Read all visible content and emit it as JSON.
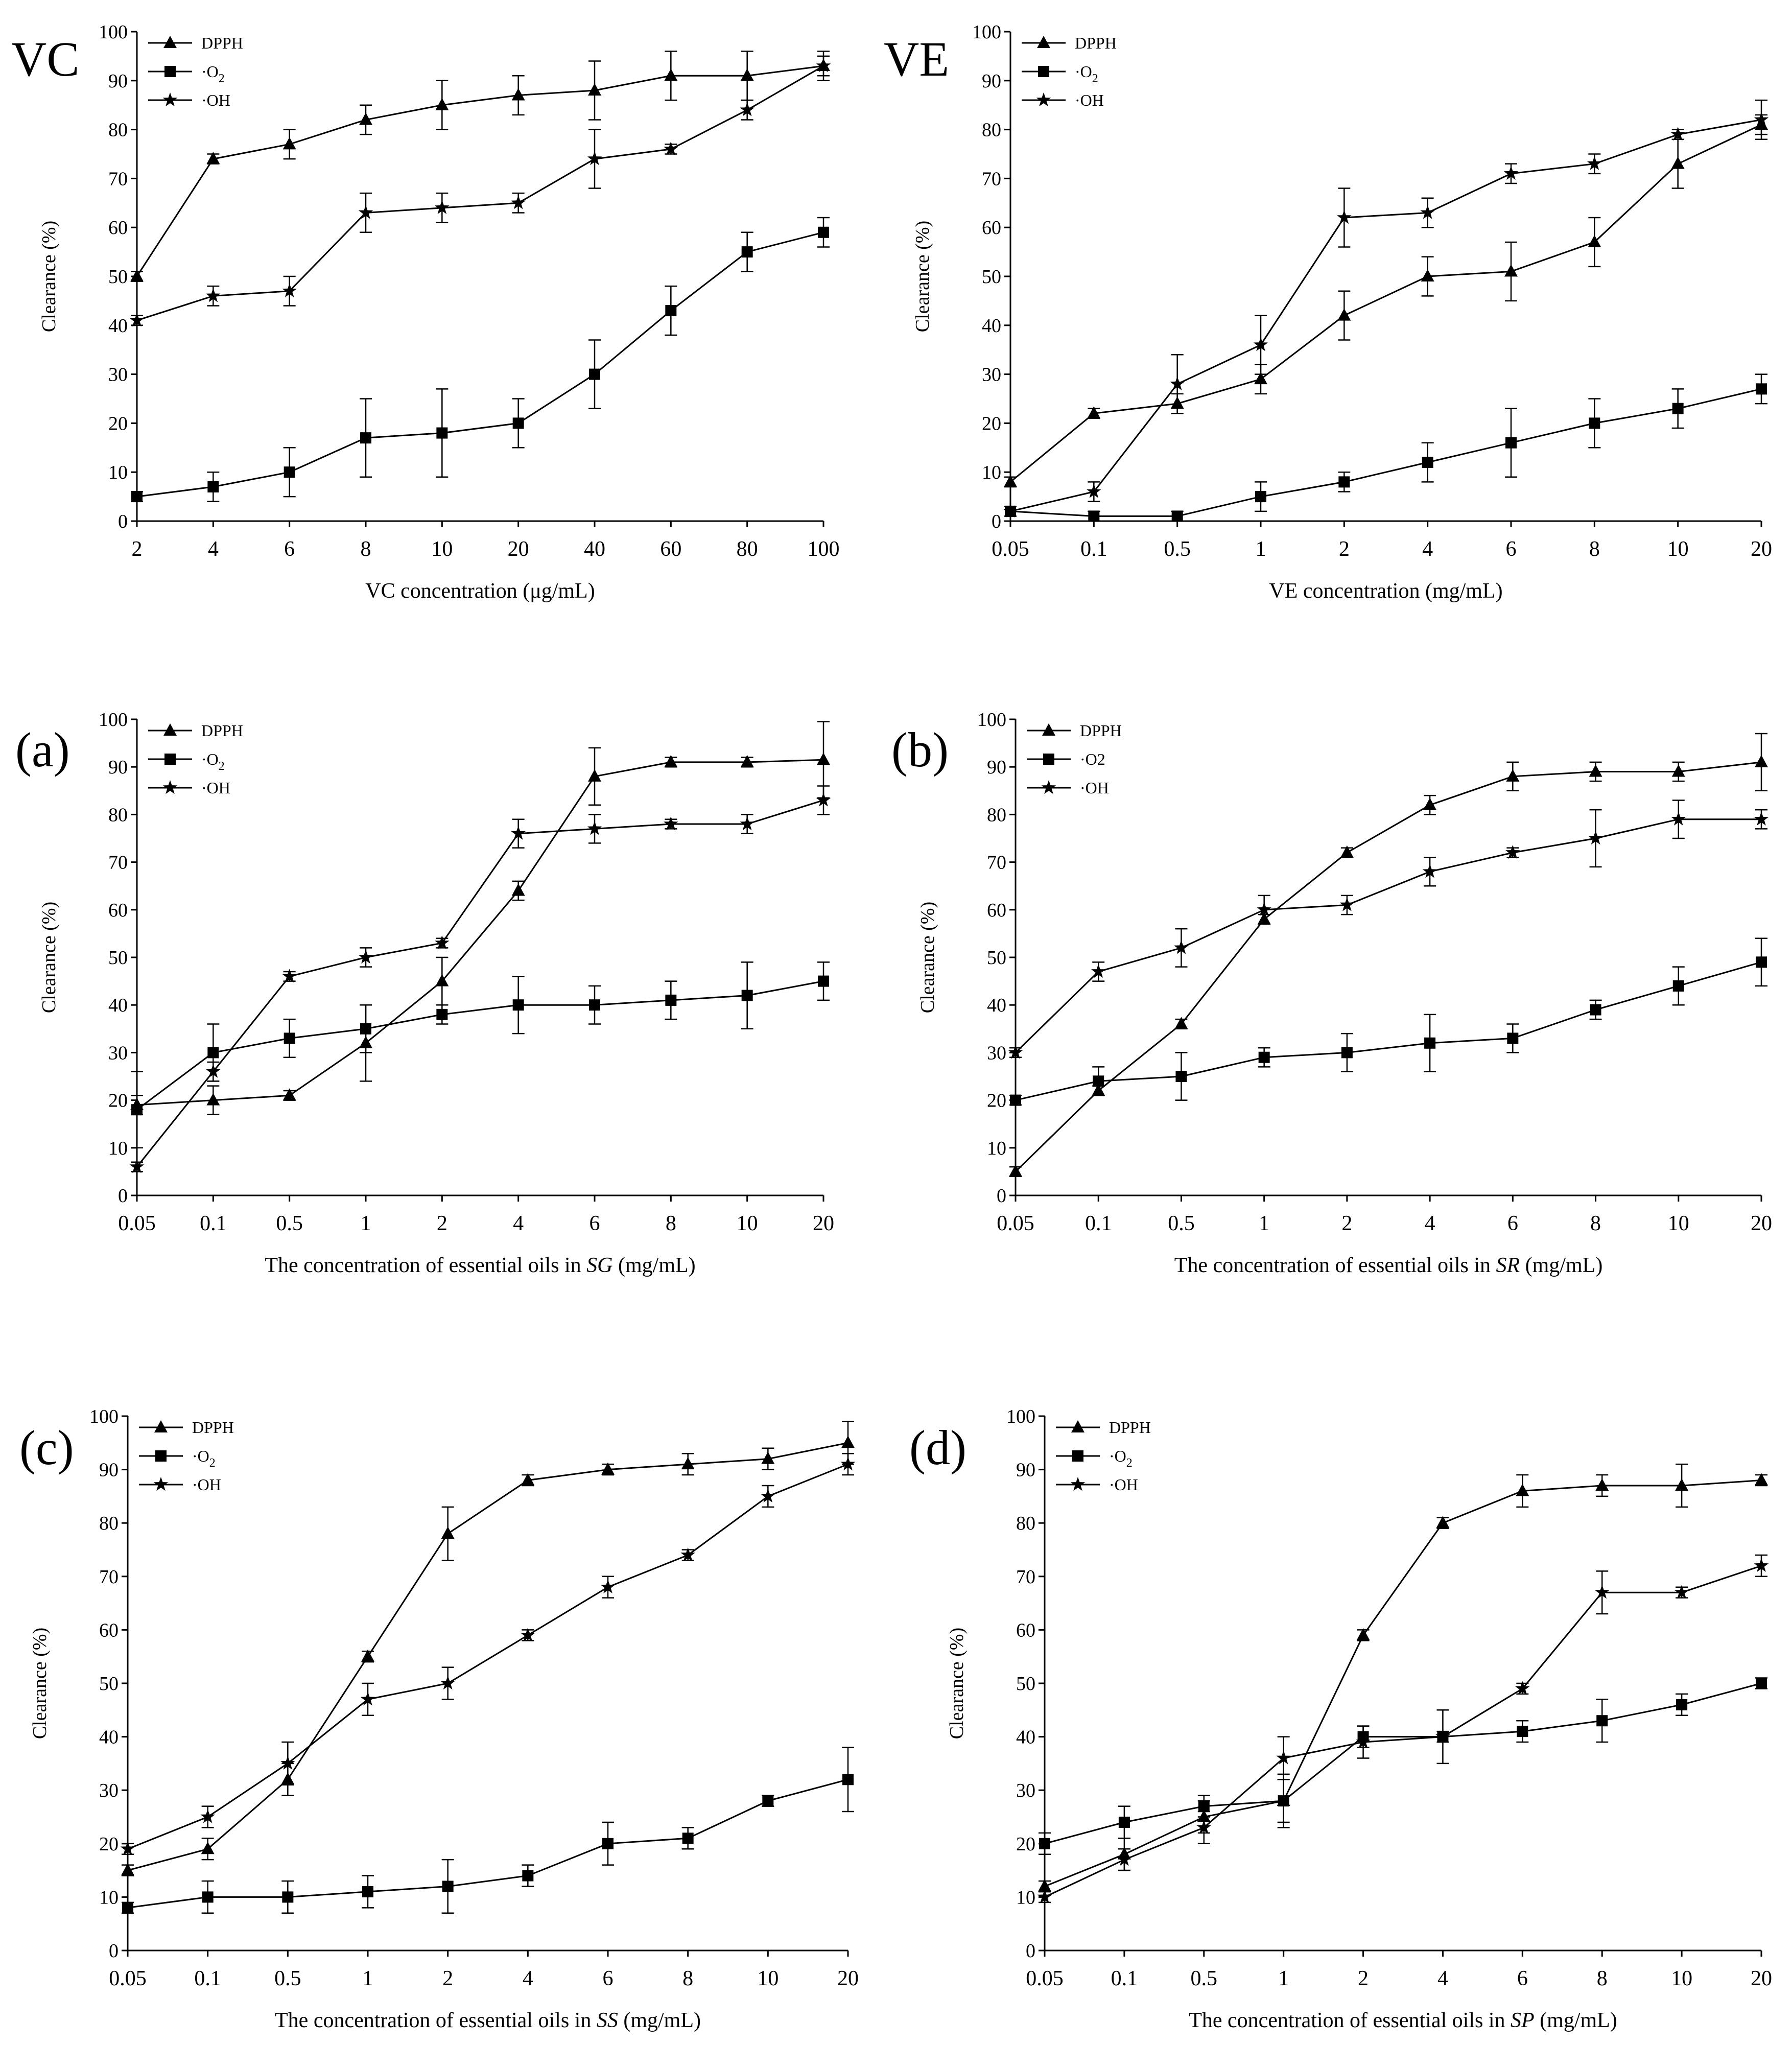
{
  "chart_data": [
    {
      "panel_label": "VC",
      "type": "line",
      "categories": [
        "2",
        "4",
        "6",
        "8",
        "10",
        "20",
        "40",
        "60",
        "80",
        "100"
      ],
      "xlabel": "VC concentration (μg/mL)",
      "xlabel_prefix": "VC concentration (μg/mL)",
      "xlabel_italic": "",
      "xlabel_suffix": "",
      "ylabel": "Clearance (%)",
      "ylim": [
        0,
        100
      ],
      "yticks": [
        0,
        10,
        20,
        30,
        40,
        50,
        60,
        70,
        80,
        90,
        100
      ],
      "legend": {
        "position": "top-left",
        "entries": [
          {
            "marker": "triangle",
            "text": "DPPH",
            "sub": ""
          },
          {
            "marker": "square",
            "text": "·O",
            "sub": "2"
          },
          {
            "marker": "star",
            "text": "·OH",
            "sub": ""
          }
        ]
      },
      "series": [
        {
          "name": "DPPH",
          "marker": "triangle",
          "values": [
            50,
            74,
            77,
            82,
            85,
            87,
            88,
            91,
            91,
            93
          ],
          "errors": [
            1,
            1,
            3,
            3,
            5,
            4,
            6,
            5,
            5,
            2
          ]
        },
        {
          "name": "·O2",
          "marker": "square",
          "values": [
            5,
            7,
            10,
            17,
            18,
            20,
            30,
            43,
            55,
            59
          ],
          "errors": [
            1,
            3,
            5,
            8,
            9,
            5,
            7,
            5,
            4,
            3
          ]
        },
        {
          "name": "·OH",
          "marker": "star",
          "values": [
            41,
            46,
            47,
            63,
            64,
            65,
            74,
            76,
            84,
            93
          ],
          "errors": [
            1,
            2,
            3,
            4,
            3,
            2,
            6,
            1,
            2,
            3
          ]
        }
      ]
    },
    {
      "panel_label": "VE",
      "type": "line",
      "categories": [
        "0.05",
        "0.1",
        "0.5",
        "1",
        "2",
        "4",
        "6",
        "8",
        "10",
        "20"
      ],
      "xlabel": "VE concentration (mg/mL)",
      "xlabel_prefix": "VE concentration (mg/mL)",
      "xlabel_italic": "",
      "xlabel_suffix": "",
      "ylabel": "Clearance (%)",
      "ylim": [
        0,
        100
      ],
      "yticks": [
        0,
        10,
        20,
        30,
        40,
        50,
        60,
        70,
        80,
        90,
        100
      ],
      "legend": {
        "position": "top-left",
        "entries": [
          {
            "marker": "triangle",
            "text": "DPPH",
            "sub": ""
          },
          {
            "marker": "square",
            "text": "·O",
            "sub": "2"
          },
          {
            "marker": "star",
            "text": "·OH",
            "sub": ""
          }
        ]
      },
      "series": [
        {
          "name": "DPPH",
          "marker": "triangle",
          "values": [
            8,
            22,
            24,
            29,
            42,
            50,
            51,
            57,
            73,
            81
          ],
          "errors": [
            1,
            1,
            2,
            3,
            5,
            4,
            6,
            5,
            5,
            2
          ]
        },
        {
          "name": "·O2",
          "marker": "square",
          "values": [
            2,
            1,
            1,
            5,
            8,
            12,
            16,
            20,
            23,
            27
          ],
          "errors": [
            1,
            1,
            1,
            3,
            2,
            4,
            7,
            5,
            4,
            3
          ]
        },
        {
          "name": "·OH",
          "marker": "star",
          "values": [
            2,
            6,
            28,
            36,
            62,
            63,
            71,
            73,
            79,
            82
          ],
          "errors": [
            1,
            2,
            6,
            6,
            6,
            3,
            2,
            2,
            1,
            4
          ]
        }
      ]
    },
    {
      "panel_label": "(a)",
      "type": "line",
      "categories": [
        "0.05",
        "0.1",
        "0.5",
        "1",
        "2",
        "4",
        "6",
        "8",
        "10",
        "20"
      ],
      "xlabel": "The concentration of essential oils in SG (mg/mL)",
      "xlabel_prefix": "The concentration of essential oils in ",
      "xlabel_italic": "SG",
      "xlabel_suffix": " (mg/mL)",
      "ylabel": "Clearance (%)",
      "ylim": [
        0,
        100
      ],
      "yticks": [
        0,
        10,
        20,
        30,
        40,
        50,
        60,
        70,
        80,
        90,
        100
      ],
      "legend": {
        "position": "top-left",
        "entries": [
          {
            "marker": "triangle",
            "text": "DPPH",
            "sub": ""
          },
          {
            "marker": "square",
            "text": "·O",
            "sub": "2"
          },
          {
            "marker": "star",
            "text": "·OH",
            "sub": ""
          }
        ]
      },
      "series": [
        {
          "name": "DPPH",
          "marker": "triangle",
          "values": [
            19,
            20,
            21,
            32,
            45,
            64,
            88,
            91,
            91,
            91.5
          ],
          "errors": [
            2,
            3,
            1,
            8,
            5,
            2,
            6,
            1,
            1,
            8
          ]
        },
        {
          "name": "·O2",
          "marker": "square",
          "values": [
            18,
            30,
            33,
            35,
            38,
            40,
            40,
            41,
            42,
            45
          ],
          "errors": [
            8,
            6,
            4,
            5,
            2,
            6,
            4,
            4,
            7,
            4
          ]
        },
        {
          "name": "·OH",
          "marker": "star",
          "values": [
            6,
            26,
            46,
            50,
            53,
            76,
            77,
            78,
            78,
            83
          ],
          "errors": [
            1,
            2,
            1,
            2,
            1,
            3,
            3,
            1,
            2,
            3
          ]
        }
      ]
    },
    {
      "panel_label": "(b)",
      "type": "line",
      "categories": [
        "0.05",
        "0.1",
        "0.5",
        "1",
        "2",
        "4",
        "6",
        "8",
        "10",
        "20"
      ],
      "xlabel": "The concentration of essential oils in SR (mg/mL)",
      "xlabel_prefix": "The concentration of essential oils in ",
      "xlabel_italic": "SR",
      "xlabel_suffix": " (mg/mL)",
      "ylabel": "Clearance (%)",
      "ylim": [
        0,
        100
      ],
      "yticks": [
        0,
        10,
        20,
        30,
        40,
        50,
        60,
        70,
        80,
        90,
        100
      ],
      "legend": {
        "position": "top-left",
        "entries": [
          {
            "marker": "triangle",
            "text": "DPPH",
            "sub": ""
          },
          {
            "marker": "square",
            "text": "·O2",
            "sub": ""
          },
          {
            "marker": "star",
            "text": "·OH",
            "sub": ""
          }
        ]
      },
      "series": [
        {
          "name": "DPPH",
          "marker": "triangle",
          "values": [
            5,
            22,
            36,
            58,
            72,
            82,
            88,
            89,
            89,
            91
          ],
          "errors": [
            1,
            1,
            1,
            1,
            1,
            2,
            3,
            2,
            2,
            6
          ]
        },
        {
          "name": "·O2",
          "marker": "square",
          "values": [
            20,
            24,
            25,
            29,
            30,
            32,
            33,
            39,
            44,
            49
          ],
          "errors": [
            1,
            3,
            5,
            2,
            4,
            6,
            3,
            2,
            4,
            5
          ]
        },
        {
          "name": "·OH",
          "marker": "star",
          "values": [
            30,
            47,
            52,
            60,
            61,
            68,
            72,
            75,
            79,
            79
          ],
          "errors": [
            1,
            2,
            4,
            3,
            2,
            3,
            1,
            6,
            4,
            2
          ]
        }
      ]
    },
    {
      "panel_label": "(c)",
      "type": "line",
      "categories": [
        "0.05",
        "0.1",
        "0.5",
        "1",
        "2",
        "4",
        "6",
        "8",
        "10",
        "20"
      ],
      "xlabel": "The concentration of essential oils in SS (mg/mL)",
      "xlabel_prefix": "The concentration of essential oils in ",
      "xlabel_italic": "SS",
      "xlabel_suffix": " (mg/mL)",
      "ylabel": "Clearance (%)",
      "ylim": [
        0,
        100
      ],
      "yticks": [
        0,
        10,
        20,
        30,
        40,
        50,
        60,
        70,
        80,
        90,
        100
      ],
      "legend": {
        "position": "top-left",
        "entries": [
          {
            "marker": "triangle",
            "text": "DPPH",
            "sub": ""
          },
          {
            "marker": "square",
            "text": "·O",
            "sub": "2"
          },
          {
            "marker": "star",
            "text": "·OH",
            "sub": ""
          }
        ]
      },
      "series": [
        {
          "name": "DPPH",
          "marker": "triangle",
          "values": [
            15,
            19,
            32,
            55,
            78,
            88,
            90,
            91,
            92,
            95
          ],
          "errors": [
            1,
            2,
            3,
            1,
            5,
            1,
            1,
            2,
            2,
            4
          ]
        },
        {
          "name": "·O2",
          "marker": "square",
          "values": [
            8,
            10,
            10,
            11,
            12,
            14,
            20,
            21,
            28,
            32
          ],
          "errors": [
            1,
            3,
            3,
            3,
            5,
            2,
            4,
            2,
            1,
            6
          ]
        },
        {
          "name": "·OH",
          "marker": "star",
          "values": [
            19,
            25,
            35,
            47,
            50,
            59,
            68,
            74,
            85,
            91
          ],
          "errors": [
            1,
            2,
            4,
            3,
            3,
            1,
            2,
            1,
            2,
            2
          ]
        }
      ]
    },
    {
      "panel_label": "(d)",
      "type": "line",
      "categories": [
        "0.05",
        "0.1",
        "0.5",
        "1",
        "2",
        "4",
        "6",
        "8",
        "10",
        "20"
      ],
      "xlabel": "The concentration of essential oils in SP (mg/mL)",
      "xlabel_prefix": "The concentration of essential oils in ",
      "xlabel_italic": "SP",
      "xlabel_suffix": " (mg/mL)",
      "ylabel": "Clearance (%)",
      "ylim": [
        0,
        100
      ],
      "yticks": [
        0,
        10,
        20,
        30,
        40,
        50,
        60,
        70,
        80,
        90,
        100
      ],
      "legend": {
        "position": "top-left",
        "entries": [
          {
            "marker": "triangle",
            "text": "DPPH",
            "sub": ""
          },
          {
            "marker": "square",
            "text": "·O",
            "sub": "2"
          },
          {
            "marker": "star",
            "text": "·OH",
            "sub": ""
          }
        ]
      },
      "series": [
        {
          "name": "DPPH",
          "marker": "triangle",
          "values": [
            12,
            18,
            25,
            28,
            59,
            80,
            86,
            87,
            87,
            88
          ],
          "errors": [
            1,
            3,
            3,
            5,
            1,
            1,
            3,
            2,
            4,
            1
          ]
        },
        {
          "name": "·O2",
          "marker": "square",
          "values": [
            20,
            24,
            27,
            28,
            40,
            40,
            41,
            43,
            46,
            50
          ],
          "errors": [
            2,
            3,
            2,
            4,
            2,
            5,
            2,
            4,
            2,
            1
          ]
        },
        {
          "name": "·OH",
          "marker": "star",
          "values": [
            10,
            17,
            23,
            36,
            39,
            40,
            49,
            67,
            67,
            72
          ],
          "errors": [
            1,
            2,
            3,
            4,
            3,
            1,
            1,
            4,
            1,
            2
          ]
        }
      ]
    }
  ]
}
